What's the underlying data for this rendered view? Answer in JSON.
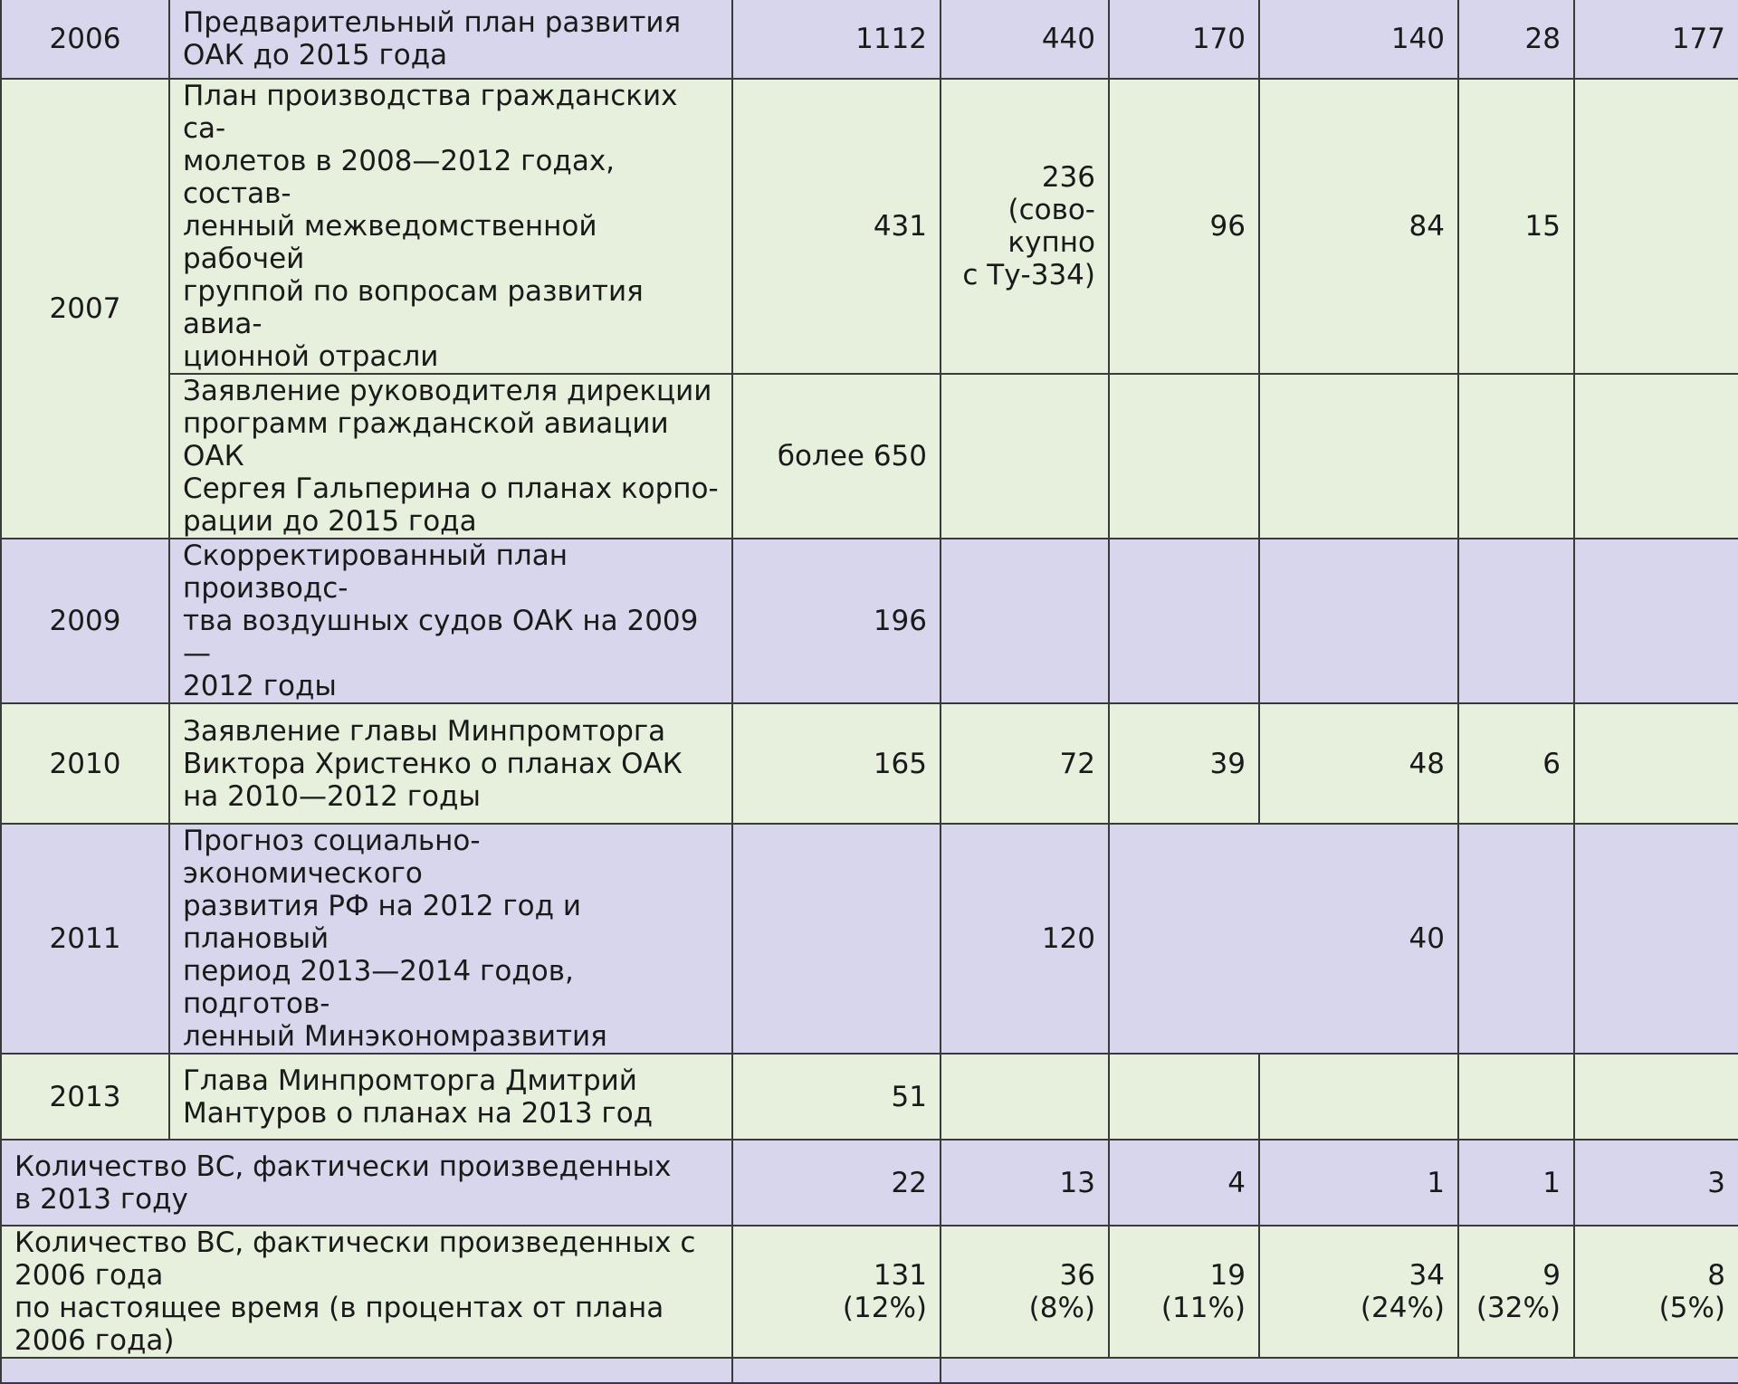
{
  "rows": [
    {
      "year": "2006",
      "desc": [
        "Предварительный план развития",
        "ОАК до 2015 года"
      ],
      "total": "1112",
      "c2": "440",
      "c3": "170",
      "c4": "140",
      "c5": "28",
      "c6": "177"
    },
    {
      "year": "2007",
      "desc": [
        "План производства гражданских са-",
        "молетов в 2008—2012 годах, состав-",
        "ленный межведомственной рабочей",
        "группой по вопросам развития авиа-",
        "ционной отрасли"
      ],
      "total": "431",
      "c2": [
        "236",
        "(сово-",
        "купно",
        "с Ту-334)"
      ],
      "c3": "96",
      "c4": "84",
      "c5": "15",
      "c6": ""
    },
    {
      "desc": [
        "Заявление руководителя дирекции",
        "программ гражданской авиации ОАК",
        "Сергея Гальперина о планах корпо-",
        "рации до 2015 года"
      ],
      "total": "более 650"
    },
    {
      "year": "2009",
      "desc": [
        "Скорректированный план производс-",
        "тва воздушных судов ОАК на 2009—",
        "2012 годы"
      ],
      "total": "196"
    },
    {
      "year": "2010",
      "desc": [
        "Заявление главы Минпромторга",
        "Виктора Христенко о планах ОАК",
        "на 2010—2012 годы"
      ],
      "total": "165",
      "c2": "72",
      "c3": "39",
      "c4": "48",
      "c5": "6",
      "c6": ""
    },
    {
      "year": "2011",
      "desc": [
        "Прогноз социально-экономического",
        "развития РФ на 2012 год и плановый",
        "период 2013—2014 годов, подготов-",
        "ленный Минэкономразвития"
      ],
      "total": "",
      "c2": "120",
      "c34": "40"
    },
    {
      "year": "2013",
      "desc": [
        "Глава Минпромторга Дмитрий",
        "Мантуров о планах на 2013 год"
      ],
      "total": "51"
    }
  ],
  "summary1": {
    "label": [
      "Количество ВС, фактически произведенных",
      "в 2013 году"
    ],
    "total": "22",
    "c2": "13",
    "c3": "4",
    "c4": "1",
    "c5": "1",
    "c6": "3"
  },
  "summary2": {
    "label": [
      "Количество ВС, фактически произведенных с 2006 года",
      "по настоящее время (в процентах от плана 2006 года)"
    ],
    "total": [
      "131",
      "(12%)"
    ],
    "c2": [
      "36",
      "(8%)"
    ],
    "c3": [
      "19",
      "(11%)"
    ],
    "c4": [
      "34",
      "(24%)"
    ],
    "c5": [
      "9",
      "(32%)"
    ],
    "c6": [
      "8",
      "(5%)"
    ]
  }
}
